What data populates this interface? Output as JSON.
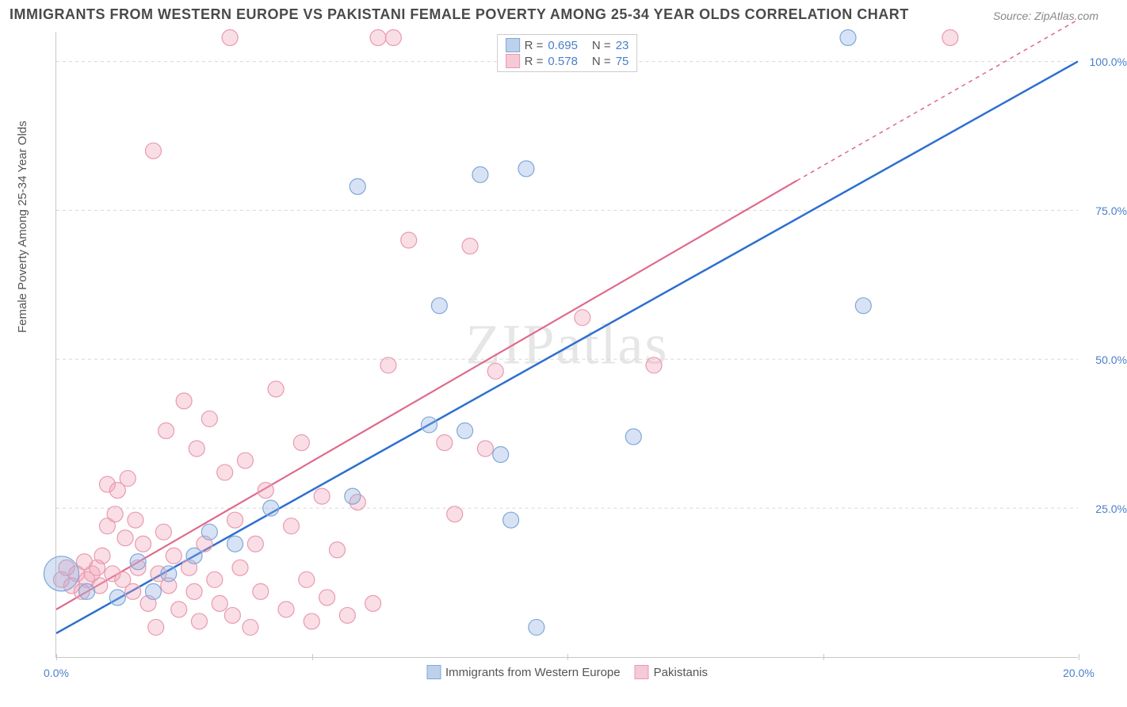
{
  "title": "IMMIGRANTS FROM WESTERN EUROPE VS PAKISTANI FEMALE POVERTY AMONG 25-34 YEAR OLDS CORRELATION CHART",
  "source_prefix": "Source: ",
  "source": "ZipAtlas.com",
  "watermark": "ZIPatlas",
  "ylabel": "Female Poverty Among 25-34 Year Olds",
  "chart": {
    "type": "scatter",
    "xlim": [
      0,
      20
    ],
    "ylim": [
      0,
      105
    ],
    "x_ticks": [
      0,
      5,
      10,
      15,
      20
    ],
    "x_tick_labels": [
      "0.0%",
      "",
      "",
      "",
      "20.0%"
    ],
    "y_ticks": [
      25,
      50,
      75,
      100
    ],
    "y_tick_labels": [
      "25.0%",
      "50.0%",
      "75.0%",
      "100.0%"
    ],
    "grid_color": "#d8d8d8",
    "background": "#ffffff",
    "axis_label_color": "#4a7fc9",
    "axis_label_fontsize": 14,
    "title_fontsize": 18,
    "title_color": "#4a4a4a",
    "ylabel_fontsize": 15,
    "ylabel_color": "#555555"
  },
  "series": [
    {
      "name": "Immigrants from Western Europe",
      "color_fill": "rgba(140,175,225,0.35)",
      "color_stroke": "#7fa7d8",
      "swatch_fill": "#bcd2ec",
      "swatch_stroke": "#7fa7d8",
      "marker_radius": 10,
      "R": "0.695",
      "N": "23",
      "trend": {
        "x1": 0,
        "y1": 4,
        "x2": 20,
        "y2": 100,
        "dash_from_x": 20,
        "stroke": "#2e6fd0",
        "width": 2.5
      },
      "points": [
        {
          "x": 0.1,
          "y": 14,
          "r": 22
        },
        {
          "x": 0.6,
          "y": 11
        },
        {
          "x": 1.2,
          "y": 10
        },
        {
          "x": 1.6,
          "y": 16
        },
        {
          "x": 1.9,
          "y": 11
        },
        {
          "x": 2.2,
          "y": 14
        },
        {
          "x": 2.7,
          "y": 17
        },
        {
          "x": 3.0,
          "y": 21
        },
        {
          "x": 3.5,
          "y": 19
        },
        {
          "x": 4.2,
          "y": 25
        },
        {
          "x": 5.8,
          "y": 27
        },
        {
          "x": 5.9,
          "y": 79
        },
        {
          "x": 7.3,
          "y": 39
        },
        {
          "x": 7.5,
          "y": 59
        },
        {
          "x": 8.0,
          "y": 38
        },
        {
          "x": 8.3,
          "y": 81
        },
        {
          "x": 8.7,
          "y": 34
        },
        {
          "x": 8.9,
          "y": 23
        },
        {
          "x": 9.2,
          "y": 82
        },
        {
          "x": 9.4,
          "y": 5
        },
        {
          "x": 11.3,
          "y": 37
        },
        {
          "x": 15.5,
          "y": 104
        },
        {
          "x": 15.8,
          "y": 59
        }
      ]
    },
    {
      "name": "Pakistanis",
      "color_fill": "rgba(240,160,180,0.35)",
      "color_stroke": "#e89ab0",
      "swatch_fill": "#f5c9d5",
      "swatch_stroke": "#e89ab0",
      "marker_radius": 10,
      "R": "0.578",
      "N": "75",
      "trend": {
        "x1": 0,
        "y1": 8,
        "x2": 14.5,
        "y2": 80,
        "dash_to_x": 20,
        "dash_to_y": 107,
        "stroke": "#e06a8a",
        "width": 2.2
      },
      "points": [
        {
          "x": 0.1,
          "y": 13
        },
        {
          "x": 0.2,
          "y": 15
        },
        {
          "x": 0.3,
          "y": 12
        },
        {
          "x": 0.4,
          "y": 14
        },
        {
          "x": 0.5,
          "y": 11
        },
        {
          "x": 0.55,
          "y": 16
        },
        {
          "x": 0.6,
          "y": 13
        },
        {
          "x": 0.7,
          "y": 14
        },
        {
          "x": 0.8,
          "y": 15
        },
        {
          "x": 0.85,
          "y": 12
        },
        {
          "x": 0.9,
          "y": 17
        },
        {
          "x": 1.0,
          "y": 22
        },
        {
          "x": 1.0,
          "y": 29
        },
        {
          "x": 1.1,
          "y": 14
        },
        {
          "x": 1.15,
          "y": 24
        },
        {
          "x": 1.2,
          "y": 28
        },
        {
          "x": 1.3,
          "y": 13
        },
        {
          "x": 1.35,
          "y": 20
        },
        {
          "x": 1.4,
          "y": 30
        },
        {
          "x": 1.5,
          "y": 11
        },
        {
          "x": 1.55,
          "y": 23
        },
        {
          "x": 1.6,
          "y": 15
        },
        {
          "x": 1.7,
          "y": 19
        },
        {
          "x": 1.8,
          "y": 9
        },
        {
          "x": 1.9,
          "y": 85
        },
        {
          "x": 1.95,
          "y": 5
        },
        {
          "x": 2.0,
          "y": 14
        },
        {
          "x": 2.1,
          "y": 21
        },
        {
          "x": 2.15,
          "y": 38
        },
        {
          "x": 2.2,
          "y": 12
        },
        {
          "x": 2.3,
          "y": 17
        },
        {
          "x": 2.4,
          "y": 8
        },
        {
          "x": 2.5,
          "y": 43
        },
        {
          "x": 2.6,
          "y": 15
        },
        {
          "x": 2.7,
          "y": 11
        },
        {
          "x": 2.75,
          "y": 35
        },
        {
          "x": 2.8,
          "y": 6
        },
        {
          "x": 2.9,
          "y": 19
        },
        {
          "x": 3.0,
          "y": 40
        },
        {
          "x": 3.1,
          "y": 13
        },
        {
          "x": 3.2,
          "y": 9
        },
        {
          "x": 3.3,
          "y": 31
        },
        {
          "x": 3.4,
          "y": 104
        },
        {
          "x": 3.45,
          "y": 7
        },
        {
          "x": 3.5,
          "y": 23
        },
        {
          "x": 3.6,
          "y": 15
        },
        {
          "x": 3.7,
          "y": 33
        },
        {
          "x": 3.8,
          "y": 5
        },
        {
          "x": 3.9,
          "y": 19
        },
        {
          "x": 4.0,
          "y": 11
        },
        {
          "x": 4.1,
          "y": 28
        },
        {
          "x": 4.3,
          "y": 45
        },
        {
          "x": 4.5,
          "y": 8
        },
        {
          "x": 4.6,
          "y": 22
        },
        {
          "x": 4.8,
          "y": 36
        },
        {
          "x": 4.9,
          "y": 13
        },
        {
          "x": 5.0,
          "y": 6
        },
        {
          "x": 5.2,
          "y": 27
        },
        {
          "x": 5.3,
          "y": 10
        },
        {
          "x": 5.5,
          "y": 18
        },
        {
          "x": 5.7,
          "y": 7
        },
        {
          "x": 5.9,
          "y": 26
        },
        {
          "x": 6.2,
          "y": 9
        },
        {
          "x": 6.3,
          "y": 104
        },
        {
          "x": 6.5,
          "y": 49
        },
        {
          "x": 6.6,
          "y": 104
        },
        {
          "x": 6.9,
          "y": 70
        },
        {
          "x": 7.6,
          "y": 36
        },
        {
          "x": 7.8,
          "y": 24
        },
        {
          "x": 8.1,
          "y": 69
        },
        {
          "x": 8.4,
          "y": 35
        },
        {
          "x": 8.6,
          "y": 48
        },
        {
          "x": 10.3,
          "y": 57
        },
        {
          "x": 11.7,
          "y": 49
        },
        {
          "x": 17.5,
          "y": 104
        }
      ]
    }
  ],
  "legend_labels": {
    "R": "R =",
    "N": "N ="
  }
}
